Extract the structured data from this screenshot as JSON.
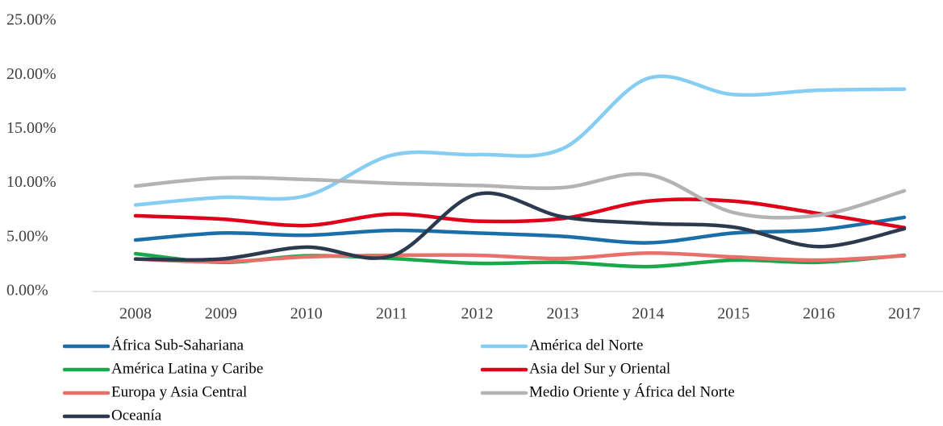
{
  "chart_data": {
    "type": "line",
    "categories": [
      "2008",
      "2009",
      "2010",
      "2011",
      "2012",
      "2013",
      "2014",
      "2015",
      "2016",
      "2017"
    ],
    "series": [
      {
        "name": "África Sub-Sahariana",
        "color": "#1b6fa8",
        "values": [
          4.76,
          5.4,
          5.2,
          5.65,
          5.4,
          5.1,
          4.5,
          5.4,
          5.7,
          6.85
        ]
      },
      {
        "name": "América del Norte",
        "color": "#86cdf3",
        "values": [
          8.0,
          8.7,
          8.85,
          12.6,
          12.65,
          13.2,
          19.7,
          18.2,
          18.6,
          18.7
        ]
      },
      {
        "name": "América Latina y Caribe",
        "color": "#1aa84a",
        "values": [
          3.5,
          2.7,
          3.3,
          3.05,
          2.6,
          2.7,
          2.3,
          2.9,
          2.7,
          3.35
        ]
      },
      {
        "name": "Asia del Sur y Oriental",
        "color": "#e00019",
        "values": [
          7.0,
          6.7,
          6.1,
          7.15,
          6.5,
          6.75,
          8.35,
          8.35,
          7.2,
          5.9
        ]
      },
      {
        "name": "Europa y Asia Central",
        "color": "#e8706a",
        "values": [
          3.0,
          2.75,
          3.2,
          3.35,
          3.35,
          3.05,
          3.55,
          3.2,
          2.9,
          3.3
        ]
      },
      {
        "name": "Medio Oriente y África del Norte",
        "color": "#b3b3b3",
        "values": [
          9.75,
          10.5,
          10.35,
          10.0,
          9.8,
          9.6,
          10.8,
          7.3,
          7.05,
          9.3
        ]
      },
      {
        "name": "Oceanía",
        "color": "#2c3a50",
        "values": [
          3.0,
          3.0,
          4.1,
          3.3,
          9.0,
          6.9,
          6.3,
          5.95,
          4.15,
          5.8
        ]
      }
    ],
    "ylim": [
      0,
      25
    ],
    "yticks": [
      {
        "value": 0,
        "label": "0.00%"
      },
      {
        "value": 5,
        "label": "5.00%"
      },
      {
        "value": 10,
        "label": "10.00%"
      },
      {
        "value": 15,
        "label": "15.00%"
      },
      {
        "value": 20,
        "label": "20.00%"
      },
      {
        "value": 25,
        "label": "25.00%"
      }
    ]
  }
}
